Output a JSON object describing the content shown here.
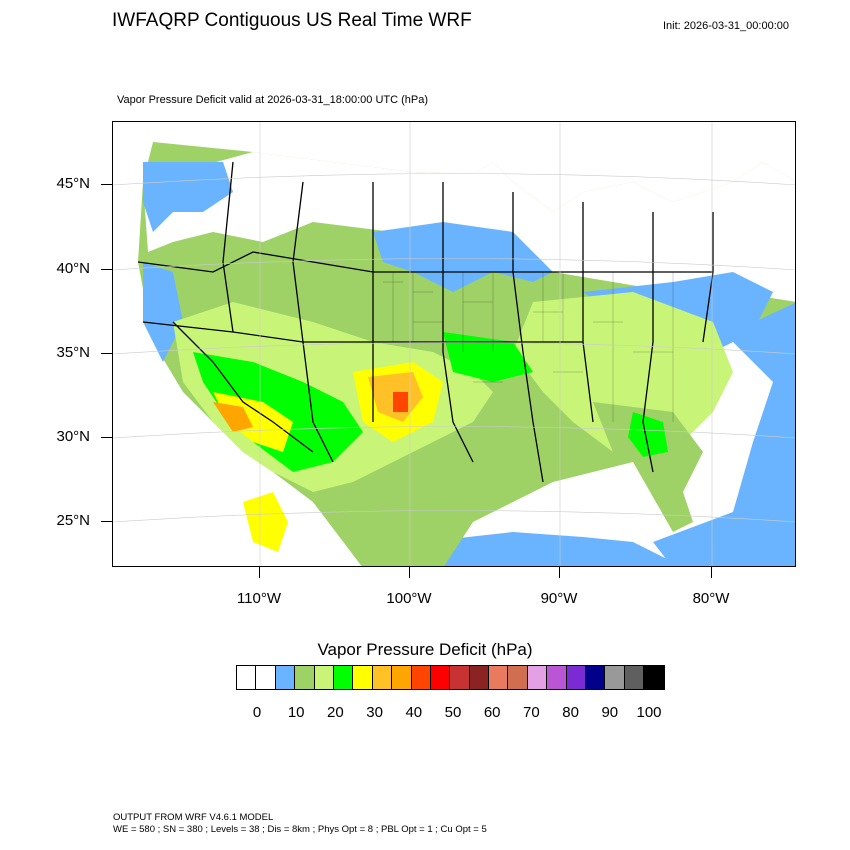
{
  "title": "IWFAQRP Contiguous US Real Time WRF",
  "init": "Init: 2026-03-31_00:00:00",
  "subtitle": "Vapor Pressure Deficit valid at 2026-03-31_18:00:00 UTC   (hPa)",
  "lat_labels": [
    "45°N",
    "40°N",
    "35°N",
    "30°N",
    "25°N"
  ],
  "lon_labels": [
    "110°W",
    "100°W",
    "90°W",
    "80°W"
  ],
  "colorbar": {
    "title": "Vapor Pressure Deficit  (hPa)",
    "labels": [
      "0",
      "10",
      "20",
      "30",
      "40",
      "50",
      "60",
      "70",
      "80",
      "90",
      "100"
    ],
    "colors": [
      "#ffffff",
      "#ffffff",
      "#6ab4ff",
      "#9ed166",
      "#c8f578",
      "#00ff00",
      "#ffff00",
      "#ffc125",
      "#ffa500",
      "#ff4500",
      "#ff0000",
      "#c83232",
      "#8b2323",
      "#e97a5f",
      "#d26e50",
      "#e4a0e4",
      "#ba55d3",
      "#7b2bd3",
      "#00008b",
      "#999999",
      "#5f5f5f",
      "#000000"
    ]
  },
  "footer": {
    "line1": "OUTPUT FROM WRF V4.6.1 MODEL",
    "line2": "WE = 580 ; SN = 380 ; Levels = 38 ; Dis = 8km ; Phys Opt = 8 ; PBL Opt = 1 ; Cu Opt = 5"
  }
}
